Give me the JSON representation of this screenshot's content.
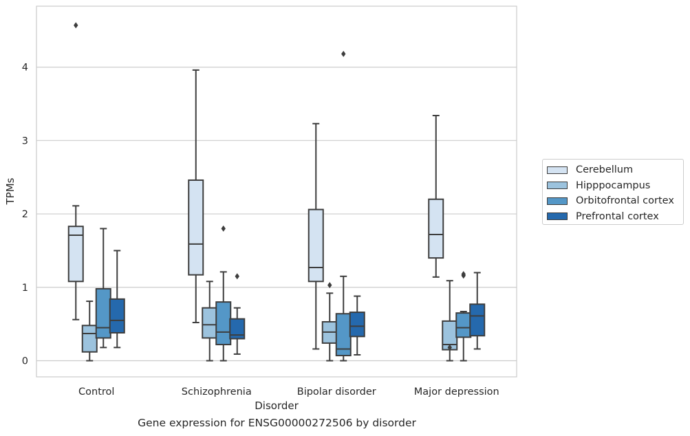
{
  "caption": "Gene expression for ENSG00000272506 by disorder",
  "chart_data": {
    "type": "box",
    "xlabel": "Disorder",
    "ylabel": "TPMs",
    "ylim": [
      -0.22,
      4.83
    ],
    "yticks": [
      0,
      1,
      2,
      3,
      4
    ],
    "grid": "horizontal",
    "legend_position": "right",
    "categories": [
      "Control",
      "Schizophrenia",
      "Bipolar disorder",
      "Major depression"
    ],
    "series": [
      {
        "name": "Cerebellum",
        "color": "#d4e3f2",
        "boxes": [
          {
            "whislo": 0.56,
            "q1": 1.08,
            "med": 1.71,
            "q3": 1.83,
            "whishi": 2.11,
            "fliers": [
              4.57
            ]
          },
          {
            "whislo": 0.52,
            "q1": 1.17,
            "med": 1.59,
            "q3": 2.46,
            "whishi": 3.96,
            "fliers": []
          },
          {
            "whislo": 0.16,
            "q1": 1.08,
            "med": 1.27,
            "q3": 2.06,
            "whishi": 3.23,
            "fliers": []
          },
          {
            "whislo": 1.14,
            "q1": 1.4,
            "med": 1.72,
            "q3": 2.2,
            "whishi": 3.34,
            "fliers": []
          }
        ]
      },
      {
        "name": "Hipppocampus",
        "color": "#9cc3de",
        "boxes": [
          {
            "whislo": 0.0,
            "q1": 0.12,
            "med": 0.37,
            "q3": 0.48,
            "whishi": 0.81,
            "fliers": []
          },
          {
            "whislo": 0.0,
            "q1": 0.31,
            "med": 0.49,
            "q3": 0.72,
            "whishi": 1.08,
            "fliers": []
          },
          {
            "whislo": 0.0,
            "q1": 0.24,
            "med": 0.39,
            "q3": 0.53,
            "whishi": 0.92,
            "fliers": [
              1.03
            ]
          },
          {
            "whislo": 0.0,
            "q1": 0.15,
            "med": 0.22,
            "q3": 0.54,
            "whishi": 1.09,
            "fliers": [
              0.18
            ]
          }
        ]
      },
      {
        "name": "Orbitofrontal cortex",
        "color": "#5497c7",
        "boxes": [
          {
            "whislo": 0.18,
            "q1": 0.31,
            "med": 0.45,
            "q3": 0.98,
            "whishi": 1.8,
            "fliers": []
          },
          {
            "whislo": 0.0,
            "q1": 0.22,
            "med": 0.39,
            "q3": 0.8,
            "whishi": 1.21,
            "fliers": [
              1.8
            ]
          },
          {
            "whislo": 0.0,
            "q1": 0.07,
            "med": 0.16,
            "q3": 0.64,
            "whishi": 1.15,
            "fliers": [
              4.18
            ]
          },
          {
            "whislo": 0.0,
            "q1": 0.32,
            "med": 0.45,
            "q3": 0.65,
            "whishi": 0.67,
            "fliers": [
              1.16,
              1.18
            ]
          }
        ]
      },
      {
        "name": "Prefrontal cortex",
        "color": "#2569ad",
        "boxes": [
          {
            "whislo": 0.18,
            "q1": 0.38,
            "med": 0.55,
            "q3": 0.84,
            "whishi": 1.5,
            "fliers": []
          },
          {
            "whislo": 0.09,
            "q1": 0.3,
            "med": 0.35,
            "q3": 0.57,
            "whishi": 0.72,
            "fliers": [
              1.15
            ]
          },
          {
            "whislo": 0.08,
            "q1": 0.33,
            "med": 0.47,
            "q3": 0.66,
            "whishi": 0.88,
            "fliers": []
          },
          {
            "whislo": 0.16,
            "q1": 0.34,
            "med": 0.61,
            "q3": 0.77,
            "whishi": 1.2,
            "fliers": []
          }
        ]
      }
    ]
  }
}
